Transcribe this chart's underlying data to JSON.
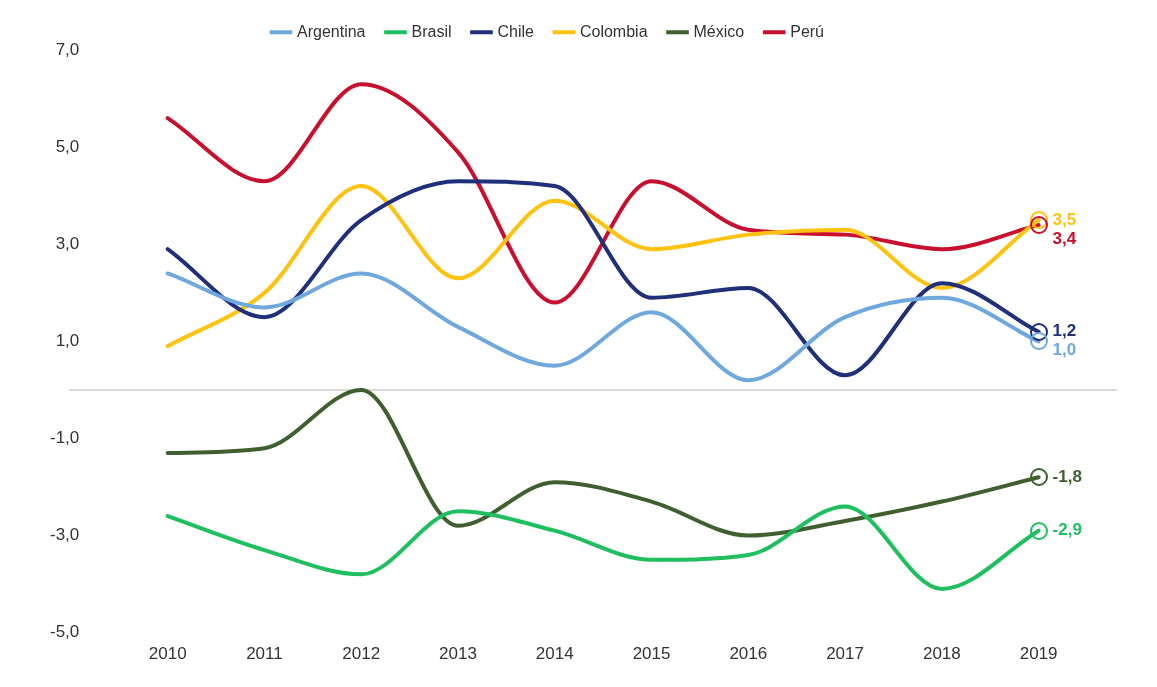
{
  "chart_data": {
    "type": "line",
    "categories": [
      "2010",
      "2011",
      "2012",
      "2013",
      "2014",
      "2015",
      "2016",
      "2017",
      "2018",
      "2019"
    ],
    "series": [
      {
        "name": "Argentina",
        "color": "#6fa8dc",
        "values": [
          2.4,
          1.7,
          2.4,
          1.3,
          0.5,
          1.6,
          0.2,
          1.5,
          1.9,
          1.0
        ],
        "value_labels": [
          null,
          null,
          null,
          null,
          null,
          null,
          null,
          null,
          null,
          "1,0"
        ]
      },
      {
        "name": "Brasil",
        "color": "#1fbf5f",
        "values": [
          -2.6,
          -3.3,
          -3.8,
          -2.5,
          -2.9,
          -3.5,
          -3.4,
          -2.4,
          -4.1,
          -2.9
        ],
        "value_labels": [
          null,
          null,
          null,
          null,
          null,
          null,
          null,
          null,
          null,
          "-2,9"
        ]
      },
      {
        "name": "Chile",
        "color": "#1f2f7a",
        "values": [
          2.9,
          1.5,
          3.5,
          4.3,
          4.2,
          1.9,
          2.1,
          0.3,
          2.2,
          1.2
        ],
        "value_labels": [
          null,
          null,
          null,
          null,
          null,
          null,
          null,
          null,
          null,
          "1,2"
        ]
      },
      {
        "name": "Colombia",
        "color": "#ffc20e",
        "values": [
          0.9,
          2.0,
          4.2,
          2.3,
          3.9,
          2.9,
          3.2,
          3.3,
          2.1,
          3.5
        ],
        "value_labels": [
          null,
          null,
          null,
          null,
          null,
          null,
          null,
          null,
          null,
          "3,5"
        ]
      },
      {
        "name": "México",
        "color": "#3f5f2f",
        "values": [
          -1.3,
          -1.2,
          0.0,
          -2.8,
          -1.9,
          -2.3,
          -3.0,
          -2.7,
          -2.3,
          -1.8
        ],
        "value_labels": [
          null,
          null,
          null,
          null,
          null,
          null,
          null,
          null,
          null,
          "-1,8"
        ]
      },
      {
        "name": "Perú",
        "color": "#c8102e",
        "values": [
          5.6,
          4.3,
          6.3,
          4.9,
          1.8,
          4.3,
          3.3,
          3.2,
          2.9,
          3.4
        ],
        "value_labels": [
          null,
          null,
          null,
          null,
          null,
          null,
          null,
          null,
          null,
          "3,4"
        ]
      }
    ],
    "ylim": [
      -5,
      7
    ],
    "yticks": [
      {
        "value": 7,
        "label": "7,0"
      },
      {
        "value": 5,
        "label": "5,0"
      },
      {
        "value": 3,
        "label": "3,0"
      },
      {
        "value": 1,
        "label": "1,0"
      },
      {
        "value": -1,
        "label": "-1,0"
      },
      {
        "value": -3,
        "label": "-3,0"
      },
      {
        "value": -5,
        "label": "-5,0"
      }
    ],
    "ref_lines": [
      {
        "axis": "y",
        "value": 0,
        "color": "#d9d9d9"
      }
    ],
    "grid": false,
    "legend": "top",
    "marker": "none",
    "line_style": "solid"
  }
}
